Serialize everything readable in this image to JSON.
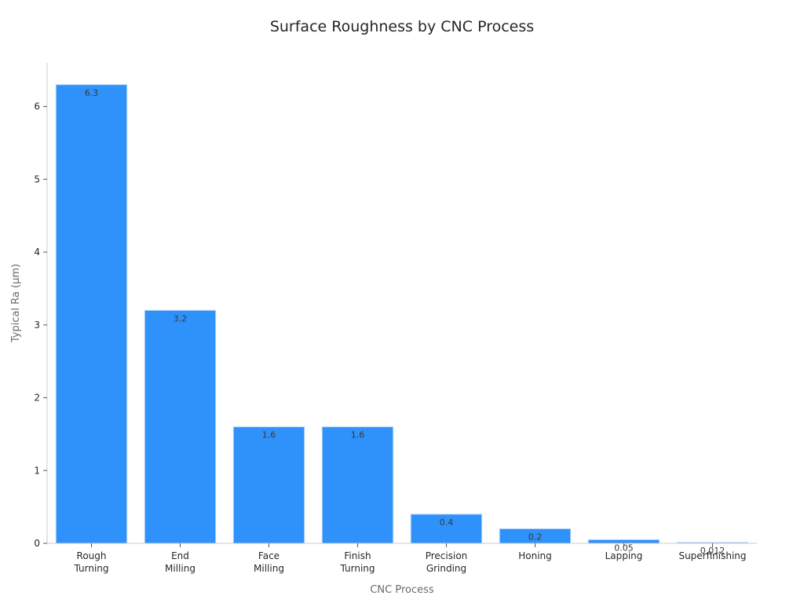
{
  "chart_data": {
    "type": "bar",
    "title": "Surface Roughness by CNC Process",
    "xlabel": "CNC Process",
    "ylabel": "Typical Ra (μm)",
    "categories": [
      [
        "Rough",
        "Turning"
      ],
      [
        "End",
        "Milling"
      ],
      [
        "Face",
        "Milling"
      ],
      [
        "Finish",
        "Turning"
      ],
      [
        "Precision",
        "Grinding"
      ],
      [
        "Honing"
      ],
      [
        "Lapping"
      ],
      [
        "Superfinishing"
      ]
    ],
    "values": [
      6.3,
      3.2,
      1.6,
      1.6,
      0.4,
      0.2,
      0.05,
      0.012
    ],
    "value_labels": [
      "6.3",
      "3.2",
      "1.6",
      "1.6",
      "0.4",
      "0.2",
      "0.05",
      "0.012"
    ],
    "ylim": [
      0,
      6.6
    ],
    "yticks": [
      0,
      1,
      2,
      3,
      4,
      5,
      6
    ],
    "grid": false,
    "colors": {
      "bar_fill": "#2f91fa",
      "bar_edge": "#b8d6f8",
      "axis": "#cccccc",
      "text": "#262626"
    }
  }
}
